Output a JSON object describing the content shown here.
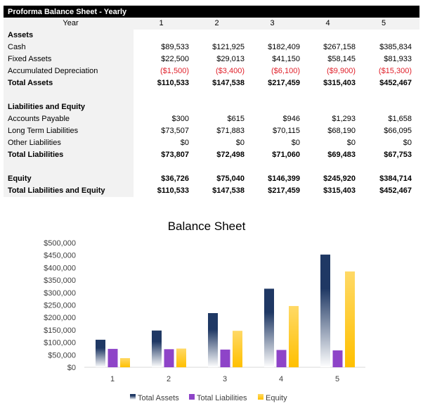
{
  "table": {
    "title": "Proforma Balance Sheet - Yearly",
    "year_label": "Year",
    "years": [
      "1",
      "2",
      "3",
      "4",
      "5"
    ],
    "rows": [
      {
        "label": "Assets",
        "bold": true,
        "values": []
      },
      {
        "label": "Cash",
        "values": [
          "$89,533",
          "$121,925",
          "$182,409",
          "$267,158",
          "$385,834"
        ]
      },
      {
        "label": "Fixed Assets",
        "values": [
          "$22,500",
          "$29,013",
          "$41,150",
          "$58,145",
          "$81,933"
        ]
      },
      {
        "label": "Accumulated Depreciation",
        "negative": true,
        "values": [
          "($1,500)",
          "($3,400)",
          "($6,100)",
          "($9,900)",
          "($15,300)"
        ]
      },
      {
        "label": "Total Assets",
        "bold": true,
        "values": [
          "$110,533",
          "$147,538",
          "$217,459",
          "$315,403",
          "$452,467"
        ]
      },
      {
        "label": "",
        "values": []
      },
      {
        "label": "Liabilities and Equity",
        "bold": true,
        "values": []
      },
      {
        "label": "Accounts Payable",
        "values": [
          "$300",
          "$615",
          "$946",
          "$1,293",
          "$1,658"
        ]
      },
      {
        "label": "Long Term Liabilities",
        "values": [
          "$73,507",
          "$71,883",
          "$70,115",
          "$68,190",
          "$66,095"
        ]
      },
      {
        "label": "Other Liabilities",
        "values": [
          "$0",
          "$0",
          "$0",
          "$0",
          "$0"
        ]
      },
      {
        "label": "Total Liabilities",
        "bold": true,
        "values": [
          "$73,807",
          "$72,498",
          "$71,060",
          "$69,483",
          "$67,753"
        ]
      },
      {
        "label": "",
        "values": []
      },
      {
        "label": "Equity",
        "bold": true,
        "values": [
          "$36,726",
          "$75,040",
          "$146,399",
          "$245,920",
          "$384,714"
        ]
      },
      {
        "label": "Total Liabilities and Equity",
        "bold": true,
        "values": [
          "$110,533",
          "$147,538",
          "$217,459",
          "$315,403",
          "$452,467"
        ]
      }
    ]
  },
  "chart_data": {
    "type": "bar",
    "title": "Balance Sheet",
    "categories": [
      "1",
      "2",
      "3",
      "4",
      "5"
    ],
    "ylim": [
      0,
      500000
    ],
    "yticks": [
      "$0",
      "$50,000",
      "$100,000",
      "$150,000",
      "$200,000",
      "$250,000",
      "$300,000",
      "$350,000",
      "$400,000",
      "$450,000",
      "$500,000"
    ],
    "grid": false,
    "legend": "bottom",
    "series": [
      {
        "name": "Total Assets",
        "values": [
          110533,
          147538,
          217459,
          315403,
          452467
        ],
        "color": "#1f3864"
      },
      {
        "name": "Total Liabilities",
        "values": [
          73807,
          72498,
          71060,
          69483,
          67753
        ],
        "color": "#8e44c8"
      },
      {
        "name": "Equity",
        "values": [
          36726,
          75040,
          146399,
          245920,
          384714
        ],
        "color": "#ffc000"
      }
    ]
  }
}
